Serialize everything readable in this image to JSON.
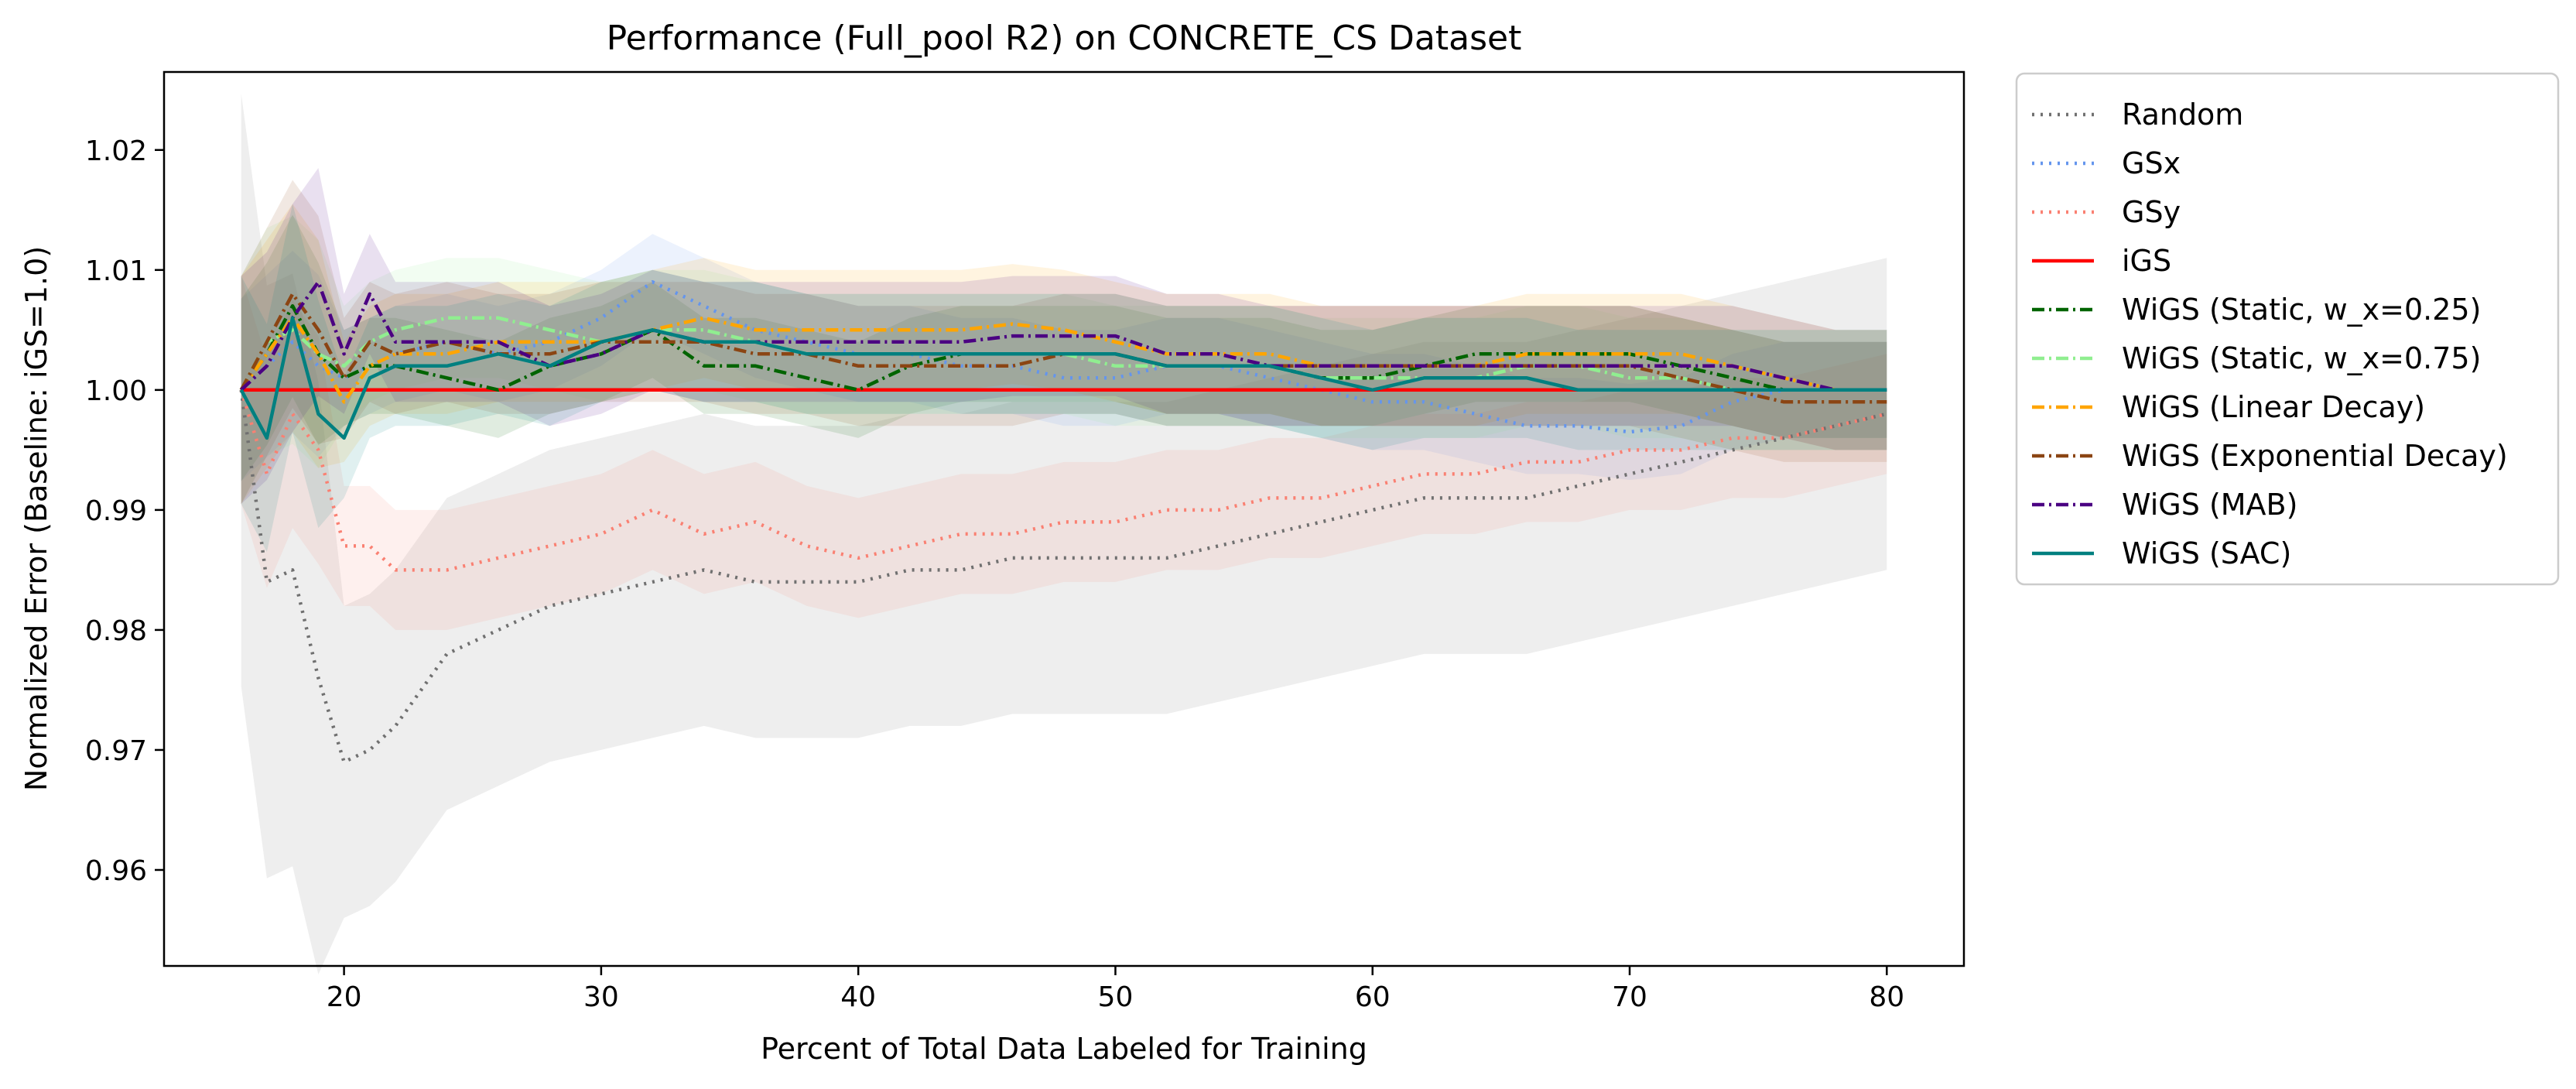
{
  "chart_data": {
    "type": "line",
    "title": "Performance (Full_pool R2) on CONCRETE_CS Dataset",
    "xlabel": "Percent of Total Data Labeled for Training",
    "ylabel": "Normalized Error (Baseline: iGS=1.0)",
    "xlim": [
      13,
      83
    ],
    "ylim": [
      0.952,
      1.0265
    ],
    "xticks": [
      20,
      30,
      40,
      50,
      60,
      70,
      80
    ],
    "yticks": [
      0.96,
      0.97,
      0.98,
      0.99,
      1.0,
      1.01,
      1.02
    ],
    "ytick_labels": [
      "0.96",
      "0.97",
      "0.98",
      "0.99",
      "1.00",
      "1.01",
      "1.02"
    ],
    "grid": false,
    "legend_position": "outside-right",
    "x": [
      16,
      17,
      18,
      19,
      20,
      21,
      22,
      24,
      26,
      28,
      30,
      32,
      34,
      36,
      38,
      40,
      42,
      44,
      46,
      48,
      50,
      52,
      54,
      56,
      58,
      60,
      62,
      64,
      66,
      68,
      70,
      72,
      74,
      76,
      78,
      80
    ],
    "series": [
      {
        "name": "Random",
        "color": "#707070",
        "dash": "dotted",
        "band": 0.013,
        "values": [
          1.0,
          0.984,
          0.985,
          0.976,
          0.969,
          0.97,
          0.972,
          0.978,
          0.98,
          0.982,
          0.983,
          0.984,
          0.985,
          0.984,
          0.984,
          0.984,
          0.985,
          0.985,
          0.986,
          0.986,
          0.986,
          0.986,
          0.987,
          0.988,
          0.989,
          0.99,
          0.991,
          0.991,
          0.991,
          0.992,
          0.993,
          0.994,
          0.995,
          0.996,
          0.997,
          0.998
        ]
      },
      {
        "name": "GSx",
        "color": "#6495ed",
        "dash": "dotted",
        "band": 0.004,
        "values": [
          1.0,
          1.002,
          1.004,
          1.002,
          1.001,
          1.002,
          1.003,
          1.004,
          1.003,
          1.004,
          1.006,
          1.009,
          1.007,
          1.005,
          1.004,
          1.003,
          1.003,
          1.002,
          1.002,
          1.001,
          1.001,
          1.002,
          1.002,
          1.001,
          1.0,
          0.999,
          0.999,
          0.998,
          0.997,
          0.997,
          0.9965,
          0.997,
          0.999,
          1.0,
          1.0,
          1.0
        ]
      },
      {
        "name": "GSy",
        "color": "#fa8072",
        "dash": "dotted",
        "band": 0.005,
        "values": [
          1.0,
          0.993,
          0.998,
          0.995,
          0.987,
          0.987,
          0.985,
          0.985,
          0.986,
          0.987,
          0.988,
          0.99,
          0.988,
          0.989,
          0.987,
          0.986,
          0.987,
          0.988,
          0.988,
          0.989,
          0.989,
          0.99,
          0.99,
          0.991,
          0.991,
          0.992,
          0.993,
          0.993,
          0.994,
          0.994,
          0.995,
          0.995,
          0.996,
          0.996,
          0.997,
          0.998
        ]
      },
      {
        "name": "iGS",
        "color": "#ff0000",
        "dash": "solid",
        "band": 0.0,
        "values": [
          1.0,
          1.0,
          1.0,
          1.0,
          1.0,
          1.0,
          1.0,
          1.0,
          1.0,
          1.0,
          1.0,
          1.0,
          1.0,
          1.0,
          1.0,
          1.0,
          1.0,
          1.0,
          1.0,
          1.0,
          1.0,
          1.0,
          1.0,
          1.0,
          1.0,
          1.0,
          1.0,
          1.0,
          1.0,
          1.0,
          1.0,
          1.0,
          1.0,
          1.0,
          1.0,
          1.0
        ]
      },
      {
        "name": "WiGS (Static, w_x=0.25)",
        "color": "#006400",
        "dash": "dashdot",
        "band": 0.004,
        "values": [
          1.0,
          1.003,
          1.007,
          1.003,
          1.001,
          1.002,
          1.002,
          1.001,
          1.0,
          1.002,
          1.003,
          1.005,
          1.002,
          1.002,
          1.001,
          1.0,
          1.002,
          1.003,
          1.003,
          1.003,
          1.003,
          1.002,
          1.002,
          1.002,
          1.001,
          1.001,
          1.002,
          1.003,
          1.003,
          1.003,
          1.003,
          1.002,
          1.001,
          1.0,
          1.0,
          1.0
        ]
      },
      {
        "name": "WiGS (Static, w_x=0.75)",
        "color": "#90ee90",
        "dash": "dashdot",
        "band": 0.005,
        "values": [
          1.0,
          1.004,
          1.005,
          1.003,
          1.002,
          1.004,
          1.005,
          1.006,
          1.006,
          1.005,
          1.004,
          1.005,
          1.005,
          1.004,
          1.003,
          1.003,
          1.003,
          1.003,
          1.003,
          1.003,
          1.002,
          1.002,
          1.002,
          1.002,
          1.001,
          1.001,
          1.001,
          1.001,
          1.002,
          1.002,
          1.001,
          1.001,
          1.0,
          1.0,
          1.0,
          1.0
        ]
      },
      {
        "name": "WiGS (Linear Decay)",
        "color": "#ffa500",
        "dash": "dashdot",
        "band": 0.005,
        "values": [
          1.0,
          1.003,
          1.006,
          1.003,
          0.999,
          1.002,
          1.003,
          1.003,
          1.004,
          1.004,
          1.004,
          1.005,
          1.006,
          1.005,
          1.005,
          1.005,
          1.005,
          1.005,
          1.0055,
          1.005,
          1.004,
          1.003,
          1.003,
          1.003,
          1.002,
          1.002,
          1.002,
          1.002,
          1.003,
          1.003,
          1.003,
          1.003,
          1.002,
          1.001,
          1.0,
          1.0
        ]
      },
      {
        "name": "WiGS (Exponential Decay)",
        "color": "#8b4513",
        "dash": "dashdot",
        "band": 0.005,
        "values": [
          1.0,
          1.004,
          1.008,
          1.005,
          1.001,
          1.004,
          1.003,
          1.004,
          1.003,
          1.003,
          1.004,
          1.004,
          1.004,
          1.003,
          1.003,
          1.002,
          1.002,
          1.002,
          1.002,
          1.003,
          1.003,
          1.002,
          1.002,
          1.002,
          1.002,
          1.002,
          1.002,
          1.002,
          1.002,
          1.002,
          1.002,
          1.001,
          1.0,
          0.999,
          0.999,
          0.999
        ]
      },
      {
        "name": "WiGS (MAB)",
        "color": "#4b0082",
        "dash": "dashdot",
        "band": 0.005,
        "values": [
          1.0,
          1.002,
          1.006,
          1.009,
          1.003,
          1.008,
          1.004,
          1.004,
          1.004,
          1.002,
          1.003,
          1.005,
          1.004,
          1.004,
          1.004,
          1.004,
          1.004,
          1.004,
          1.0045,
          1.0045,
          1.0045,
          1.003,
          1.003,
          1.002,
          1.002,
          1.002,
          1.002,
          1.002,
          1.002,
          1.002,
          1.002,
          1.002,
          1.002,
          1.001,
          1.0,
          1.0
        ]
      },
      {
        "name": "WiGS (SAC)",
        "color": "#008080",
        "dash": "solid",
        "band": 0.005,
        "values": [
          1.0,
          0.996,
          1.006,
          0.998,
          0.996,
          1.001,
          1.002,
          1.002,
          1.003,
          1.002,
          1.004,
          1.005,
          1.004,
          1.004,
          1.003,
          1.003,
          1.003,
          1.003,
          1.003,
          1.003,
          1.003,
          1.002,
          1.002,
          1.002,
          1.001,
          1.0,
          1.001,
          1.001,
          1.001,
          1.0,
          1.0,
          1.0,
          1.0,
          1.0,
          1.0,
          1.0
        ]
      }
    ]
  }
}
